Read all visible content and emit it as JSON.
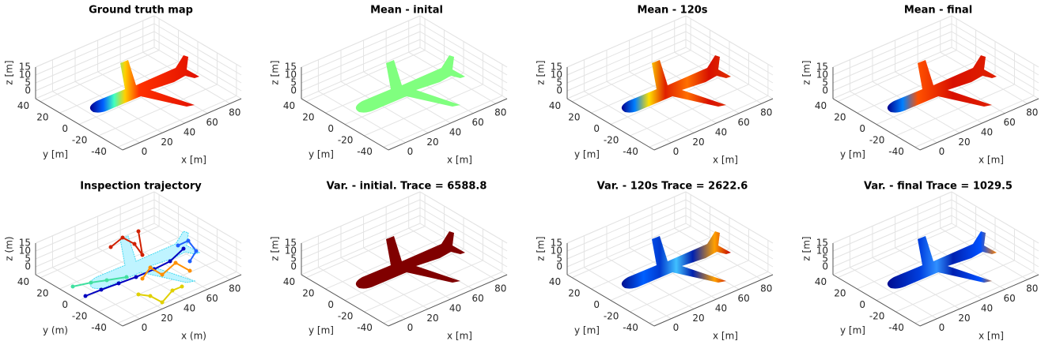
{
  "chart_data": [
    {
      "type": "surface3d",
      "title": "Ground truth map",
      "xlabel": "x [m]",
      "ylabel": "y [m]",
      "zlabel": "z [m]",
      "xlim": [
        -15,
        90
      ],
      "ylim": [
        -45,
        45
      ],
      "zlim": [
        -5,
        15
      ],
      "xticks": [
        0,
        20,
        40,
        60,
        80
      ],
      "yticks": [
        -40,
        -20,
        0,
        20,
        40
      ],
      "zticks": [
        0,
        5,
        10,
        15
      ]
    },
    {
      "type": "surface3d",
      "title": "Mean - inital",
      "xlabel": "x [m]",
      "ylabel": "y [m]",
      "zlabel": "z [m]",
      "xlim": [
        -15,
        90
      ],
      "ylim": [
        -45,
        45
      ],
      "zlim": [
        -5,
        15
      ],
      "xticks": [
        0,
        20,
        40,
        60,
        80
      ],
      "yticks": [
        -40,
        -20,
        0,
        20,
        40
      ],
      "zticks": [
        0,
        5,
        10,
        15
      ]
    },
    {
      "type": "surface3d",
      "title": "Mean - 120s",
      "xlabel": "x [m]",
      "ylabel": "y [m]",
      "zlabel": "z [m]",
      "xlim": [
        -15,
        90
      ],
      "ylim": [
        -45,
        45
      ],
      "zlim": [
        -5,
        15
      ],
      "xticks": [
        0,
        20,
        40,
        60,
        80
      ],
      "yticks": [
        -40,
        -20,
        0,
        20,
        40
      ],
      "zticks": [
        0,
        5,
        10,
        15
      ]
    },
    {
      "type": "surface3d",
      "title": "Mean - final",
      "xlabel": "x [m]",
      "ylabel": "y [m]",
      "zlabel": "z [m]",
      "xlim": [
        -15,
        90
      ],
      "ylim": [
        -45,
        45
      ],
      "zlim": [
        -5,
        15
      ],
      "xticks": [
        0,
        20,
        40,
        60,
        80
      ],
      "yticks": [
        -40,
        -20,
        0,
        20,
        40
      ],
      "zticks": [
        0,
        5,
        10,
        15
      ]
    },
    {
      "type": "trajectory3d",
      "title": "Inspection trajectory",
      "xlabel": "x (m)",
      "ylabel": "y (m)",
      "zlabel": "z (m)",
      "xlim": [
        -15,
        90
      ],
      "ylim": [
        -45,
        45
      ],
      "zlim": [
        -5,
        15
      ],
      "xticks": [
        0,
        20,
        40,
        60,
        80
      ],
      "yticks": [
        -40,
        -20,
        0,
        20,
        40
      ],
      "zticks": [
        0,
        5,
        10,
        15
      ]
    },
    {
      "type": "surface3d",
      "title": "Var. - initial. Trace = 6588.8",
      "xlabel": "x [m]",
      "ylabel": "y [m]",
      "zlabel": "z [m]",
      "xlim": [
        -15,
        90
      ],
      "ylim": [
        -45,
        45
      ],
      "zlim": [
        -5,
        15
      ],
      "xticks": [
        0,
        20,
        40,
        60,
        80
      ],
      "yticks": [
        -40,
        -20,
        0,
        20,
        40
      ],
      "zticks": [
        0,
        5,
        10,
        15
      ]
    },
    {
      "type": "surface3d",
      "title": "Var. - 120s Trace = 2622.6",
      "xlabel": "x [m]",
      "ylabel": "y [m]",
      "zlabel": "z [m]",
      "xlim": [
        -15,
        90
      ],
      "ylim": [
        -45,
        45
      ],
      "zlim": [
        -5,
        15
      ],
      "xticks": [
        0,
        20,
        40,
        60,
        80
      ],
      "yticks": [
        -40,
        -20,
        0,
        20,
        40
      ],
      "zticks": [
        0,
        5,
        10,
        15
      ]
    },
    {
      "type": "surface3d",
      "title": "Var. - final Trace = 1029.5",
      "xlabel": "x [m]",
      "ylabel": "y [m]",
      "zlabel": "z [m]",
      "xlim": [
        -15,
        90
      ],
      "ylim": [
        -45,
        45
      ],
      "zlim": [
        -5,
        15
      ],
      "xticks": [
        0,
        20,
        40,
        60,
        80
      ],
      "yticks": [
        -40,
        -20,
        0,
        20,
        40
      ],
      "zticks": [
        0,
        5,
        10,
        15
      ]
    }
  ]
}
